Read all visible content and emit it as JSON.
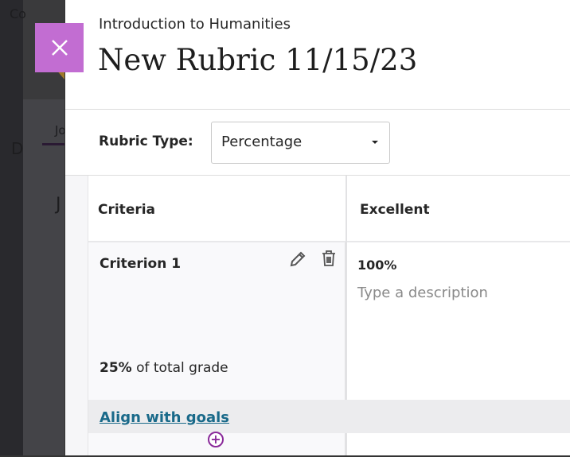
{
  "background": {
    "course_abbrev": "Co",
    "tab_initial": "Jo",
    "heading_initial": "J",
    "nav_initial": "D"
  },
  "header": {
    "course": "Introduction to Humanities",
    "title": "New Rubric 11/15/23"
  },
  "rubric_type": {
    "label": "Rubric Type:",
    "value": "Percentage"
  },
  "table": {
    "headers": [
      "Criteria",
      "Excellent"
    ],
    "rows": [
      {
        "criterion": "Criterion 1",
        "weight_value": "25%",
        "weight_text": " of total grade",
        "excellent_percent": "100%",
        "description_placeholder": "Type a description"
      }
    ],
    "align_link": "Align with goals"
  },
  "colors": {
    "close_button": "#c26dd2",
    "link": "#1a6a8a",
    "add": "#8a2a9a"
  }
}
